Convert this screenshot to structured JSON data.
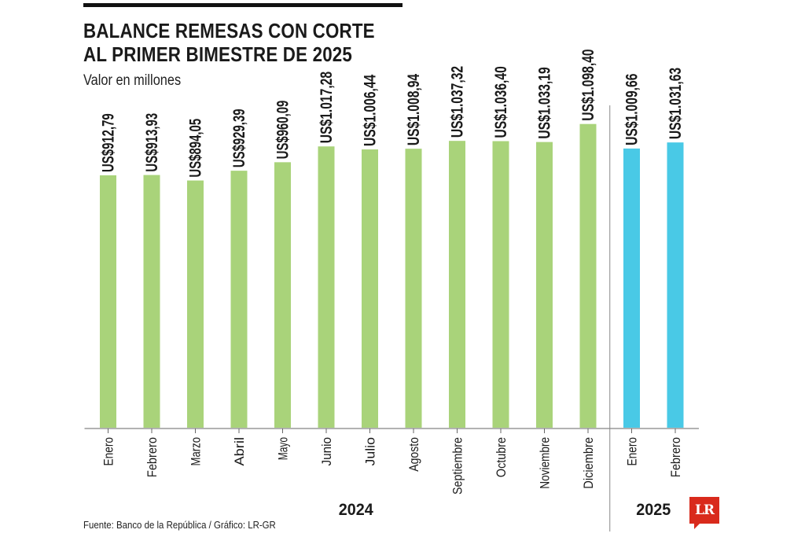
{
  "title_lines": [
    "BALANCE REMESAS CON CORTE",
    "AL PRIMER BIMESTRE DE 2025"
  ],
  "subtitle": "Valor en millones",
  "source": "Fuente: Banco de la República / Gráfico: LR-GR",
  "logo_text": "LR",
  "colors": {
    "year_2024": "#a9d37a",
    "year_2025": "#49c9e6",
    "text": "#1a1a1a",
    "logo": "#d92a1c"
  },
  "chart_data": {
    "type": "bar",
    "title": "BALANCE REMESAS CON CORTE AL PRIMER BIMESTRE DE 2025",
    "subtitle": "Valor en millones",
    "categories": [
      "Enero",
      "Febrero",
      "Marzo",
      "Abril",
      "Mayo",
      "Junio",
      "Julio",
      "Agosto",
      "Septiembre",
      "Octubre",
      "Noviembre",
      "Diciembre",
      "Enero",
      "Febrero"
    ],
    "values": [
      912.79,
      913.93,
      894.05,
      929.39,
      960.09,
      1017.28,
      1006.44,
      1008.94,
      1037.32,
      1036.4,
      1033.19,
      1098.4,
      1009.66,
      1031.63
    ],
    "labels": [
      "US$912,79",
      "US$913,93",
      "US$894,05",
      "US$929,39",
      "US$960,09",
      "US$1.017,28",
      "US$1.006,44",
      "US$1.008,94",
      "US$1.037,32",
      "US$1.036,40",
      "US$1.033,19",
      "US$1.098,40",
      "US$1.009,66",
      "US$1.031,63"
    ],
    "years": [
      {
        "name": "2024",
        "count": 12
      },
      {
        "name": "2025",
        "count": 2
      }
    ],
    "grid": false,
    "legend": "none"
  }
}
